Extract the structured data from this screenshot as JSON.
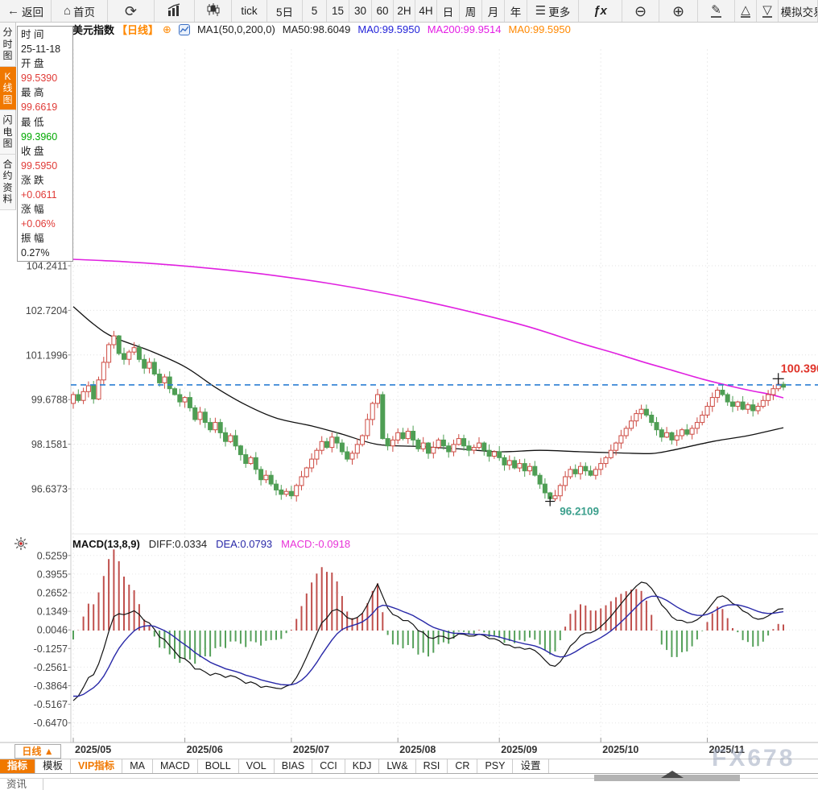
{
  "toolbar": {
    "items": [
      {
        "name": "back",
        "icon": "back-icon",
        "glyph": "←",
        "label": "返回"
      },
      {
        "name": "home",
        "icon": "home-icon",
        "glyph": "⌂",
        "label": "首页"
      },
      {
        "name": "refresh",
        "icon": "refresh-icon",
        "glyph": "⟳",
        "label": ""
      },
      {
        "name": "line-chart-mode",
        "icon": "bar-chart-icon",
        "svg": "bars",
        "label": ""
      },
      {
        "name": "candle-chart-mode",
        "icon": "candlestick-icon",
        "svg": "candles",
        "label": ""
      },
      {
        "name": "tick",
        "label": "tick"
      },
      {
        "name": "5day",
        "label": "5日"
      },
      {
        "name": "5min",
        "label": "5"
      },
      {
        "name": "15min",
        "label": "15"
      },
      {
        "name": "30min",
        "label": "30"
      },
      {
        "name": "60min",
        "label": "60"
      },
      {
        "name": "2hour",
        "label": "2H"
      },
      {
        "name": "4hour",
        "label": "4H"
      },
      {
        "name": "daily",
        "label": "日"
      },
      {
        "name": "weekly",
        "label": "周"
      },
      {
        "name": "monthly",
        "label": "月"
      },
      {
        "name": "yearly",
        "label": "年"
      },
      {
        "name": "more",
        "icon": "menu-icon",
        "glyph": "☰",
        "label": "更多"
      },
      {
        "name": "formula",
        "icon": "function-icon",
        "fx": "ƒx",
        "label": ""
      },
      {
        "name": "zoom-out",
        "icon": "zoom-out-icon",
        "glyph": "⊖",
        "label": ""
      },
      {
        "name": "zoom-in",
        "icon": "zoom-in-icon",
        "glyph": "⊕",
        "label": ""
      },
      {
        "name": "draw",
        "icon": "pencil-icon",
        "glyph": "✎",
        "underline": true,
        "label": ""
      },
      {
        "name": "pane-expand",
        "icon": "triangle-up-icon",
        "glyph": "△",
        "underline": true,
        "label": ""
      },
      {
        "name": "pane-collapse",
        "icon": "triangle-down-icon",
        "glyph": "▽",
        "underline": true,
        "label": ""
      },
      {
        "name": "sim-trading",
        "icon": "dollar-icon",
        "glyph": "$",
        "label": "模拟交易"
      }
    ]
  },
  "title_bar": {
    "symbol": "美元指数",
    "period_tag": "【日线】",
    "ma_settings": "MA1(50,0,200,0)",
    "ma50": "MA50:98.6049",
    "ma0_blue": "MA0:99.5950",
    "ma200": "MA200:99.9514",
    "ma0_orange": "MA0:99.5950"
  },
  "sidebar": {
    "tabs": [
      {
        "label": "分时图",
        "active": false
      },
      {
        "label": "K线图",
        "active": true
      },
      {
        "label": "闪电图",
        "active": false
      },
      {
        "label": "合约资料",
        "active": false
      }
    ]
  },
  "quote_panel": {
    "rows": [
      {
        "label": "时 间",
        "value": "25-11-18",
        "tone": "flat"
      },
      {
        "label": "开 盘",
        "value": "99.5390",
        "tone": "up"
      },
      {
        "label": "最 高",
        "value": "99.6619",
        "tone": "up"
      },
      {
        "label": "最 低",
        "value": "99.3960",
        "tone": "down"
      },
      {
        "label": "收 盘",
        "value": "99.5950",
        "tone": "up"
      },
      {
        "label": "涨 跌",
        "value": "+0.0611",
        "tone": "up"
      },
      {
        "label": "涨 幅",
        "value": "+0.06%",
        "tone": "up"
      },
      {
        "label": "振 幅",
        "value": "0.27%",
        "tone": "flat"
      }
    ]
  },
  "macd_header": {
    "title": "MACD(13,8,9)",
    "diff": "DIFF:0.0334",
    "dea": "DEA:0.0793",
    "macd": "MACD:-0.0918"
  },
  "bottom": {
    "period_button": "日线 ▲",
    "news_tab": "资讯",
    "tabs": [
      {
        "label": "指标",
        "style": "active"
      },
      {
        "label": "模板",
        "style": ""
      },
      {
        "label": "VIP指标",
        "style": "vip"
      },
      {
        "label": "MA",
        "style": ""
      },
      {
        "label": "MACD",
        "style": ""
      },
      {
        "label": "BOLL",
        "style": ""
      },
      {
        "label": "VOL",
        "style": ""
      },
      {
        "label": "BIAS",
        "style": ""
      },
      {
        "label": "CCI",
        "style": ""
      },
      {
        "label": "KDJ",
        "style": ""
      },
      {
        "label": "LW&",
        "style": ""
      },
      {
        "label": "RSI",
        "style": ""
      },
      {
        "label": "CR",
        "style": ""
      },
      {
        "label": "PSY",
        "style": ""
      },
      {
        "label": "设置",
        "style": ""
      }
    ]
  },
  "watermark": "FX678",
  "colors": {
    "up": "#cd4a42",
    "down": "#4e9e54",
    "ma50": "#111111",
    "ma200": "#e020e0",
    "diff_line": "#111111",
    "dea_line": "#2929a8",
    "dashed_line": "#2b7fd4",
    "high_label": "#e0352b",
    "low_label": "#3da08d",
    "accent": "#f07800",
    "grid": "#e0e0e0",
    "axis_text": "#444444"
  },
  "chart_data": {
    "type": "candlestick",
    "title": "美元指数 日线",
    "legend": [
      "MA50",
      "MA200",
      "MACD DIFF",
      "MACD DEA"
    ],
    "y_axis": {
      "ticks": [
        104.2411,
        102.7204,
        101.1996,
        99.6788,
        98.1581,
        96.6373
      ]
    },
    "x_axis": {
      "months": [
        {
          "label": "2025/05",
          "idx": 0
        },
        {
          "label": "2025/06",
          "idx": 22
        },
        {
          "label": "2025/07",
          "idx": 43
        },
        {
          "label": "2025/08",
          "idx": 64
        },
        {
          "label": "2025/09",
          "idx": 84
        },
        {
          "label": "2025/10",
          "idx": 104
        },
        {
          "label": "2025/11",
          "idx": 125
        }
      ]
    },
    "first_open": 99.55,
    "pre_closes": [
      103.4,
      103.1,
      102.8,
      102.45,
      102.1,
      101.8,
      101.5,
      101.15,
      100.8,
      100.45,
      100.1,
      99.8,
      99.6,
      99.5,
      99.65
    ],
    "closes": [
      99.85,
      99.65,
      99.95,
      100.15,
      99.7,
      100.35,
      100.95,
      101.55,
      101.85,
      101.25,
      101.05,
      101.3,
      101.45,
      101.05,
      100.75,
      100.95,
      100.55,
      100.25,
      100.45,
      100.05,
      99.85,
      99.6,
      99.75,
      99.4,
      99.0,
      99.25,
      98.9,
      98.65,
      98.9,
      98.55,
      98.25,
      98.45,
      98.1,
      97.8,
      97.5,
      97.7,
      97.3,
      96.95,
      97.1,
      96.8,
      96.6,
      96.45,
      96.55,
      96.4,
      96.75,
      97.05,
      97.35,
      97.65,
      97.95,
      98.25,
      98.05,
      98.4,
      98.2,
      97.9,
      97.65,
      97.85,
      98.15,
      98.45,
      99.0,
      99.55,
      99.85,
      98.35,
      98.1,
      98.3,
      98.55,
      98.35,
      98.6,
      98.3,
      98.0,
      98.2,
      97.85,
      98.05,
      98.3,
      98.1,
      97.9,
      98.15,
      98.35,
      98.1,
      97.95,
      98.05,
      98.2,
      97.95,
      97.75,
      97.9,
      97.7,
      97.45,
      97.6,
      97.35,
      97.5,
      97.25,
      97.4,
      97.1,
      96.8,
      96.5,
      96.3,
      96.4,
      96.75,
      97.05,
      97.3,
      97.15,
      97.4,
      97.25,
      97.1,
      97.3,
      97.5,
      97.7,
      97.95,
      98.2,
      98.45,
      98.7,
      98.95,
      99.2,
      99.35,
      99.15,
      98.9,
      98.65,
      98.4,
      98.55,
      98.3,
      98.45,
      98.65,
      98.5,
      98.7,
      98.9,
      99.15,
      99.45,
      99.75,
      100.0,
      99.85,
      99.6,
      99.45,
      99.6,
      99.35,
      99.5,
      99.3,
      99.45,
      99.65,
      99.85,
      100.05,
      100.2,
      100.1
    ],
    "wick_overrides": {
      "8": {
        "high": 102.02
      },
      "94": {
        "low": 96.2109
      },
      "139": {
        "high": 100.39
      }
    },
    "ma50_points": [
      [
        0,
        102.85
      ],
      [
        4,
        102.25
      ],
      [
        8,
        101.8
      ],
      [
        15,
        101.35
      ],
      [
        22,
        100.8
      ],
      [
        28,
        100.1
      ],
      [
        34,
        99.5
      ],
      [
        40,
        99.05
      ],
      [
        47,
        98.78
      ],
      [
        53,
        98.5
      ],
      [
        60,
        98.15
      ],
      [
        68,
        98.08
      ],
      [
        76,
        98.0
      ],
      [
        84,
        97.9
      ],
      [
        92,
        97.95
      ],
      [
        100,
        97.9
      ],
      [
        108,
        97.86
      ],
      [
        114,
        97.84
      ],
      [
        118,
        97.95
      ],
      [
        126,
        98.25
      ],
      [
        133,
        98.45
      ],
      [
        140,
        98.72
      ]
    ],
    "ma200_points": [
      [
        0,
        104.46
      ],
      [
        10,
        104.38
      ],
      [
        20,
        104.26
      ],
      [
        30,
        104.1
      ],
      [
        40,
        103.9
      ],
      [
        50,
        103.65
      ],
      [
        60,
        103.35
      ],
      [
        70,
        103.0
      ],
      [
        80,
        102.6
      ],
      [
        90,
        102.15
      ],
      [
        100,
        101.6
      ],
      [
        106,
        101.3
      ],
      [
        112,
        100.98
      ],
      [
        118,
        100.68
      ],
      [
        124,
        100.38
      ],
      [
        130,
        100.12
      ],
      [
        134,
        99.97
      ],
      [
        137,
        99.87
      ],
      [
        140,
        99.74
      ]
    ],
    "last_price_line": 100.18,
    "high_marker": {
      "idx": 139,
      "price": 100.39,
      "label": "100.390"
    },
    "low_marker": {
      "idx": 94,
      "price": 96.2109,
      "label": "96.2109"
    },
    "macd": {
      "params": [
        13,
        8,
        9
      ],
      "diff": 0.0334,
      "dea": 0.0793,
      "bar": -0.0918,
      "ticks": [
        0.5259,
        0.3955,
        0.2652,
        0.1349,
        0.0046,
        -0.1257,
        -0.2561,
        -0.3864,
        -0.5167,
        -0.647
      ]
    }
  }
}
